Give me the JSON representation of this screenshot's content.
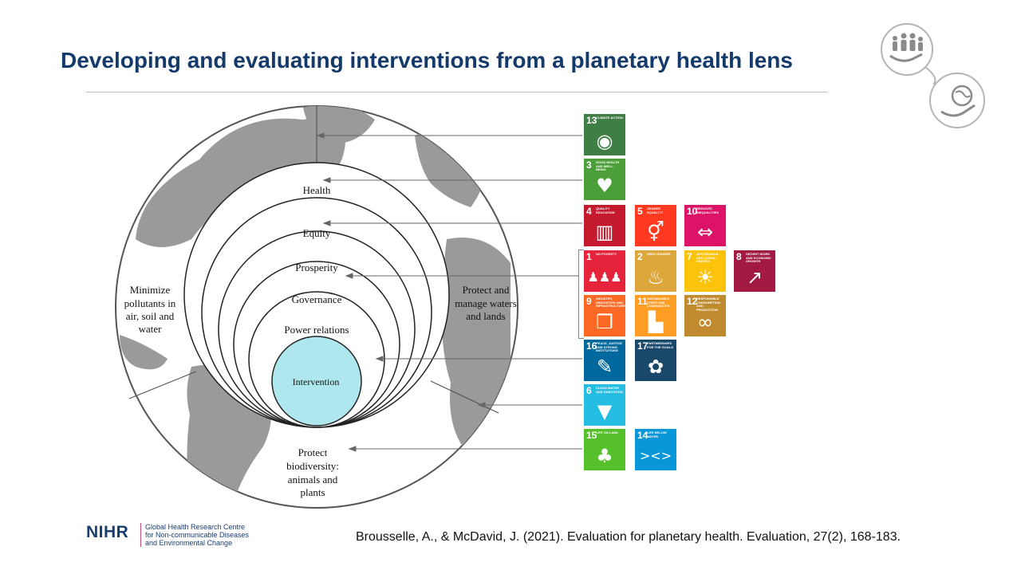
{
  "slide": {
    "title": "Developing and evaluating interventions from a planetary health lens",
    "citation": "Brousselle, A., & McDavid, J. (2021). Evaluation for planetary health. Evaluation, 27(2), 168-183."
  },
  "diagram": {
    "rings": [
      "Health",
      "Equity",
      "Prosperity",
      "Governance",
      "Power relations"
    ],
    "center": "Intervention",
    "left_label": [
      "Minimize",
      "pollutants in",
      "air, soil and",
      "water"
    ],
    "right_label": [
      "Protect and",
      "manage waters",
      "and lands"
    ],
    "bottom_label": [
      "Protect",
      "biodiversity:",
      "animals and",
      "plants"
    ],
    "colors": {
      "center_fill": "#aee8ee",
      "land": "#9a9a9a"
    }
  },
  "sdg_tiles": [
    {
      "num": "13",
      "caption": "CLIMATE ACTION",
      "icon": "eye-globe-icon",
      "glyph": "◉",
      "color": "#3f7e44"
    },
    {
      "num": "3",
      "caption": "GOOD HEALTH AND WELL-BEING",
      "icon": "heartbeat-icon",
      "glyph": "♥",
      "color": "#4c9f38"
    },
    {
      "num": "4",
      "caption": "QUALITY EDUCATION",
      "icon": "book-icon",
      "glyph": "▥",
      "color": "#c5192d"
    },
    {
      "num": "5",
      "caption": "GENDER EQUALITY",
      "icon": "gender-icon",
      "glyph": "⚥",
      "color": "#ff3a21"
    },
    {
      "num": "10",
      "caption": "REDUCED INEQUALITIES",
      "icon": "equality-icon",
      "glyph": "⇔",
      "color": "#dd1367"
    },
    {
      "num": "1",
      "caption": "NO POVERTY",
      "icon": "family-icon",
      "glyph": "♟♟♟",
      "color": "#e5243b"
    },
    {
      "num": "2",
      "caption": "ZERO HUNGER",
      "icon": "bowl-icon",
      "glyph": "♨",
      "color": "#dda63a"
    },
    {
      "num": "7",
      "caption": "AFFORDABLE AND CLEAN ENERGY",
      "icon": "sun-icon",
      "glyph": "☀",
      "color": "#fcc30b"
    },
    {
      "num": "8",
      "caption": "DECENT WORK AND ECONOMIC GROWTH",
      "icon": "growth-chart-icon",
      "glyph": "↗",
      "color": "#a21942"
    },
    {
      "num": "9",
      "caption": "INDUSTRY, INNOVATION AND INFRASTRUCTURE",
      "icon": "cubes-icon",
      "glyph": "❒",
      "color": "#fd6925"
    },
    {
      "num": "11",
      "caption": "SUSTAINABLE CITIES AND COMMUNITIES",
      "icon": "city-icon",
      "glyph": "▙",
      "color": "#fd9d24"
    },
    {
      "num": "12",
      "caption": "RESPONSIBLE CONSUMPTION AND PRODUCTION",
      "icon": "infinity-icon",
      "glyph": "∞",
      "color": "#bf8b2e"
    },
    {
      "num": "16",
      "caption": "PEACE, JUSTICE AND STRONG INSTITUTIONS",
      "icon": "dove-icon",
      "glyph": "✎",
      "color": "#00689d"
    },
    {
      "num": "17",
      "caption": "PARTNERSHIPS FOR THE GOALS",
      "icon": "rings-icon",
      "glyph": "✿",
      "color": "#19486a"
    },
    {
      "num": "6",
      "caption": "CLEAN WATER AND SANITATION",
      "icon": "water-drop-icon",
      "glyph": "▼",
      "color": "#26bde2"
    },
    {
      "num": "15",
      "caption": "LIFE ON LAND",
      "icon": "tree-icon",
      "glyph": "♣",
      "color": "#56c02b"
    },
    {
      "num": "14",
      "caption": "LIFE BELOW WATER",
      "icon": "fish-icon",
      "glyph": "><>",
      "color": "#0a97d9"
    }
  ],
  "footer": {
    "brand": "NIHR",
    "centre_lines": [
      "Global Health Research Centre",
      "for Non-communicable Diseases",
      "and Environmental Change"
    ]
  }
}
